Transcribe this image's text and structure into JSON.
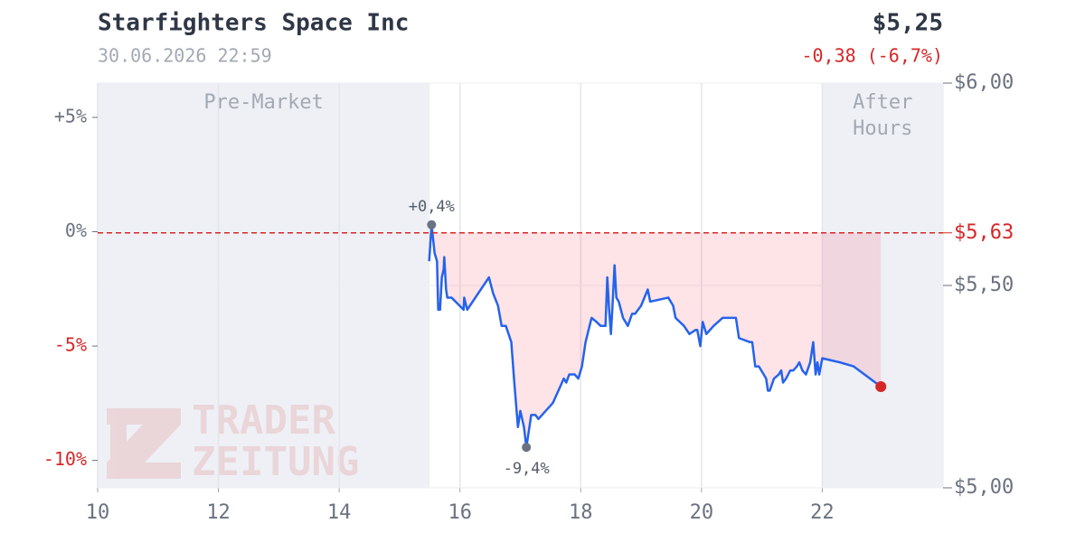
{
  "chart_data": {
    "type": "line",
    "title": "Starfighters Space Inc",
    "subtitle": "30.06.2026 22:59",
    "price": "$5,25",
    "change": "-0,38 (-6,7%)",
    "watermark": [
      "TRADER",
      "ZEITUNG"
    ],
    "xlim": [
      10,
      24
    ],
    "xticks": [
      10,
      12,
      14,
      16,
      18,
      20,
      22
    ],
    "ylim": [
      5,
      6
    ],
    "yticks": [
      {
        "value": 6,
        "label": "$6,00"
      },
      {
        "value": 5.5,
        "label": "$5,50"
      },
      {
        "value": 5,
        "label": "$5,00"
      }
    ],
    "y2lim": [
      -11.2,
      6.5
    ],
    "y2ticks": [
      {
        "value": 5,
        "label": "+5%"
      },
      {
        "value": 0,
        "label": "0%"
      },
      {
        "value": -5,
        "label": "-5%"
      },
      {
        "value": -10,
        "label": "-10%"
      }
    ],
    "grid": true,
    "reference": {
      "value": 5.63,
      "label": "$5,63",
      "color": "#d62728"
    },
    "sessions": [
      {
        "name": "Pre-Market",
        "start": 10,
        "end": 15.5
      },
      {
        "name": "After Hours",
        "start": 22,
        "end": 24
      }
    ],
    "annotations": [
      {
        "x": 15.53,
        "y": 5.65,
        "label": "+0,4%"
      },
      {
        "x": 17.1,
        "y": 5.1,
        "label": "-9,4%"
      }
    ],
    "series": [
      {
        "color": "#2563eb",
        "x": [
          15.49,
          15.53,
          15.58,
          15.62,
          15.64,
          15.67,
          15.7,
          15.73,
          15.74,
          15.77,
          15.79,
          15.86,
          16.06,
          16.07,
          16.12,
          16.48,
          16.55,
          16.63,
          16.69,
          16.76,
          16.85,
          16.9,
          16.96,
          17.0,
          17.06,
          17.1,
          17.15,
          17.18,
          17.25,
          17.3,
          17.54,
          17.66,
          17.72,
          17.76,
          17.81,
          17.9,
          17.96,
          18.02,
          18.08,
          18.18,
          18.26,
          18.33,
          18.41,
          18.44,
          18.47,
          18.5,
          18.53,
          18.56,
          18.59,
          18.63,
          18.7,
          18.78,
          18.85,
          18.9,
          19.0,
          19.11,
          19.15,
          19.45,
          19.53,
          19.57,
          19.71,
          19.8,
          19.9,
          19.93,
          19.98,
          20.02,
          20.08,
          20.2,
          20.35,
          20.57,
          20.62,
          20.8,
          20.84,
          20.89,
          20.95,
          21.07,
          21.1,
          21.13,
          21.2,
          21.28,
          21.32,
          21.35,
          21.4,
          21.47,
          21.52,
          21.58,
          21.62,
          21.67,
          21.73,
          21.8,
          21.85,
          21.89,
          21.92,
          21.95,
          22.0,
          22.29,
          22.52,
          22.97
        ],
        "values": [
          5.56,
          5.65,
          5.58,
          5.56,
          5.44,
          5.44,
          5.52,
          5.54,
          5.57,
          5.49,
          5.47,
          5.47,
          5.44,
          5.47,
          5.44,
          5.52,
          5.48,
          5.45,
          5.4,
          5.4,
          5.36,
          5.26,
          5.15,
          5.19,
          5.15,
          5.1,
          5.15,
          5.18,
          5.18,
          5.17,
          5.21,
          5.25,
          5.27,
          5.26,
          5.28,
          5.28,
          5.27,
          5.3,
          5.36,
          5.42,
          5.41,
          5.4,
          5.4,
          5.52,
          5.44,
          5.38,
          5.46,
          5.55,
          5.47,
          5.46,
          5.42,
          5.4,
          5.43,
          5.43,
          5.45,
          5.49,
          5.46,
          5.47,
          5.45,
          5.42,
          5.4,
          5.38,
          5.39,
          5.39,
          5.35,
          5.41,
          5.38,
          5.4,
          5.42,
          5.42,
          5.37,
          5.36,
          5.36,
          5.3,
          5.3,
          5.27,
          5.24,
          5.24,
          5.27,
          5.28,
          5.29,
          5.26,
          5.27,
          5.29,
          5.29,
          5.3,
          5.31,
          5.29,
          5.28,
          5.31,
          5.36,
          5.28,
          5.31,
          5.28,
          5.32,
          5.31,
          5.3,
          5.25
        ]
      }
    ]
  }
}
